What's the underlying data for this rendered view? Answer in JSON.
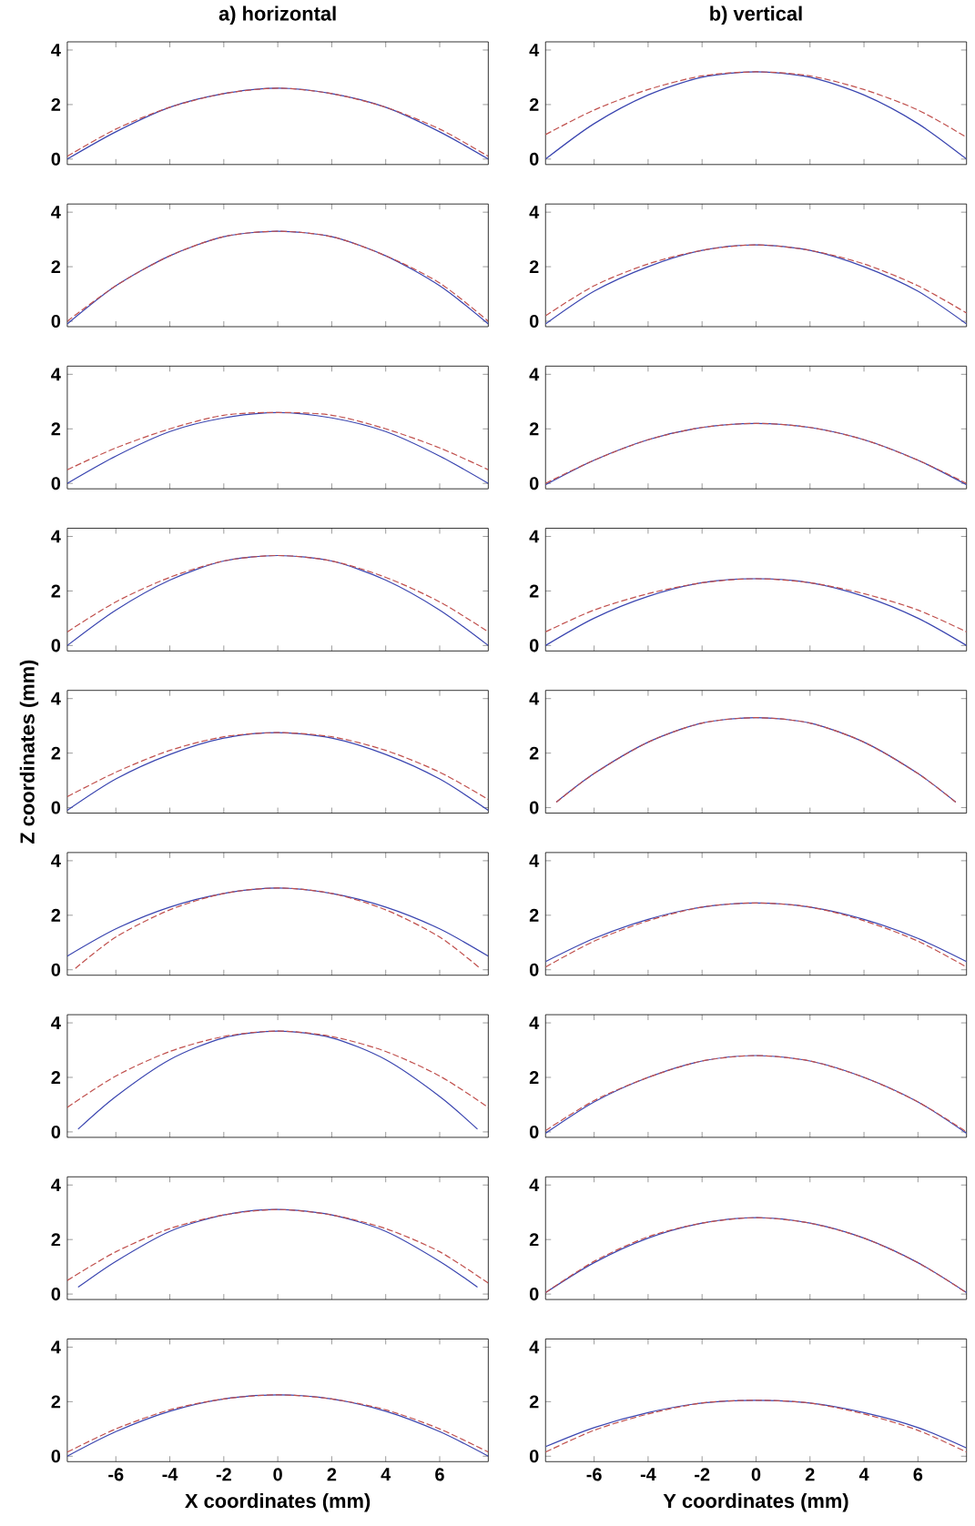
{
  "chart_data": [
    {
      "type": "line",
      "title": "a) horizontal",
      "xlim": [
        -7.8,
        7.8
      ],
      "ylim": [
        -0.2,
        4.3
      ],
      "xticks": [
        -6,
        -4,
        -2,
        0,
        2,
        4,
        6
      ],
      "yticks": [
        0,
        2,
        4
      ],
      "tick_labels": "y",
      "x": [
        -7.8,
        -6,
        -4,
        -2,
        0,
        2,
        4,
        6,
        7.8
      ],
      "series": [
        {
          "color": "#3a45b0",
          "line_style": "solid",
          "values": [
            0,
            1.0,
            1.9,
            2.4,
            2.6,
            2.4,
            1.9,
            1.0,
            0
          ]
        },
        {
          "color": "#c0504d",
          "line_style": "dashed",
          "values": [
            0.1,
            1.1,
            1.9,
            2.4,
            2.6,
            2.4,
            1.9,
            1.1,
            0.1
          ]
        }
      ]
    },
    {
      "type": "line",
      "title": "b) vertical",
      "xlim": [
        -7.8,
        7.8
      ],
      "ylim": [
        -0.2,
        4.3
      ],
      "xticks": [
        -6,
        -4,
        -2,
        0,
        2,
        4,
        6
      ],
      "yticks": [
        0,
        2,
        4
      ],
      "tick_labels": "y",
      "x": [
        -7.8,
        -6,
        -4,
        -2,
        0,
        2,
        4,
        6,
        7.8
      ],
      "series": [
        {
          "color": "#3a45b0",
          "line_style": "solid",
          "values": [
            0,
            1.3,
            2.35,
            3.0,
            3.2,
            3.0,
            2.35,
            1.3,
            0
          ]
        },
        {
          "color": "#c0504d",
          "line_style": "dashed",
          "values": [
            0.9,
            1.8,
            2.55,
            3.05,
            3.2,
            3.05,
            2.55,
            1.8,
            0.8
          ]
        }
      ]
    },
    {
      "type": "line",
      "xlim": [
        -7.8,
        7.8
      ],
      "ylim": [
        -0.2,
        4.3
      ],
      "xticks": [
        -6,
        -4,
        -2,
        0,
        2,
        4,
        6
      ],
      "yticks": [
        0,
        2,
        4
      ],
      "tick_labels": "y",
      "x": [
        -7.8,
        -6,
        -4,
        -2,
        0,
        2,
        4,
        6,
        7.8
      ],
      "series": [
        {
          "color": "#3a45b0",
          "line_style": "solid",
          "values": [
            -0.1,
            1.3,
            2.4,
            3.1,
            3.3,
            3.1,
            2.4,
            1.3,
            -0.1
          ]
        },
        {
          "color": "#c0504d",
          "line_style": "dashed",
          "values": [
            0,
            1.3,
            2.4,
            3.1,
            3.3,
            3.1,
            2.4,
            1.4,
            0
          ]
        }
      ]
    },
    {
      "type": "line",
      "xlim": [
        -7.8,
        7.8
      ],
      "ylim": [
        -0.2,
        4.3
      ],
      "xticks": [
        -6,
        -4,
        -2,
        0,
        2,
        4,
        6
      ],
      "yticks": [
        0,
        2,
        4
      ],
      "tick_labels": "y",
      "x": [
        -7.8,
        -6,
        -4,
        -2,
        0,
        2,
        4,
        6,
        7.8
      ],
      "series": [
        {
          "color": "#3a45b0",
          "line_style": "solid",
          "values": [
            -0.1,
            1.1,
            2.0,
            2.6,
            2.8,
            2.6,
            2.0,
            1.1,
            -0.1
          ]
        },
        {
          "color": "#c0504d",
          "line_style": "dashed",
          "values": [
            0.2,
            1.3,
            2.1,
            2.6,
            2.8,
            2.6,
            2.1,
            1.3,
            0.3
          ]
        }
      ]
    },
    {
      "type": "line",
      "xlim": [
        -7.8,
        7.8
      ],
      "ylim": [
        -0.2,
        4.3
      ],
      "xticks": [
        -6,
        -4,
        -2,
        0,
        2,
        4,
        6
      ],
      "yticks": [
        0,
        2,
        4
      ],
      "tick_labels": "y",
      "x": [
        -7.8,
        -6,
        -4,
        -2,
        0,
        2,
        4,
        6,
        7.8
      ],
      "series": [
        {
          "color": "#3a45b0",
          "line_style": "solid",
          "values": [
            0,
            1.0,
            1.9,
            2.4,
            2.6,
            2.4,
            1.9,
            1.0,
            0
          ]
        },
        {
          "color": "#c0504d",
          "line_style": "dashed",
          "values": [
            0.5,
            1.3,
            2.0,
            2.5,
            2.6,
            2.5,
            2.0,
            1.3,
            0.5
          ]
        }
      ]
    },
    {
      "type": "line",
      "xlim": [
        -7.8,
        7.8
      ],
      "ylim": [
        -0.2,
        4.3
      ],
      "xticks": [
        -6,
        -4,
        -2,
        0,
        2,
        4,
        6
      ],
      "yticks": [
        0,
        2,
        4
      ],
      "tick_labels": "y",
      "x": [
        -7.8,
        -6,
        -4,
        -2,
        0,
        2,
        4,
        6,
        7.8
      ],
      "series": [
        {
          "color": "#3a45b0",
          "line_style": "solid",
          "values": [
            -0.05,
            0.85,
            1.6,
            2.05,
            2.2,
            2.05,
            1.6,
            0.85,
            -0.05
          ]
        },
        {
          "color": "#c0504d",
          "line_style": "dashed",
          "values": [
            0,
            0.85,
            1.6,
            2.05,
            2.2,
            2.05,
            1.6,
            0.85,
            0
          ]
        }
      ]
    },
    {
      "type": "line",
      "xlim": [
        -7.8,
        7.8
      ],
      "ylim": [
        -0.2,
        4.3
      ],
      "xticks": [
        -6,
        -4,
        -2,
        0,
        2,
        4,
        6
      ],
      "yticks": [
        0,
        2,
        4
      ],
      "tick_labels": "y",
      "x": [
        -7.8,
        -6,
        -4,
        -2,
        0,
        2,
        4,
        6,
        7.8
      ],
      "series": [
        {
          "color": "#3a45b0",
          "line_style": "solid",
          "values": [
            0,
            1.3,
            2.4,
            3.1,
            3.3,
            3.1,
            2.4,
            1.3,
            0
          ]
        },
        {
          "color": "#c0504d",
          "line_style": "dashed",
          "values": [
            0.5,
            1.6,
            2.5,
            3.1,
            3.3,
            3.1,
            2.5,
            1.6,
            0.5
          ]
        }
      ]
    },
    {
      "type": "line",
      "xlim": [
        -7.8,
        7.8
      ],
      "ylim": [
        -0.2,
        4.3
      ],
      "xticks": [
        -6,
        -4,
        -2,
        0,
        2,
        4,
        6
      ],
      "yticks": [
        0,
        2,
        4
      ],
      "tick_labels": "y",
      "x": [
        -7.8,
        -6,
        -4,
        -2,
        0,
        2,
        4,
        6,
        7.8
      ],
      "series": [
        {
          "color": "#3a45b0",
          "line_style": "solid",
          "values": [
            0,
            1.0,
            1.8,
            2.3,
            2.45,
            2.3,
            1.8,
            1.0,
            0
          ]
        },
        {
          "color": "#c0504d",
          "line_style": "dashed",
          "values": [
            0.5,
            1.3,
            1.9,
            2.3,
            2.45,
            2.3,
            1.9,
            1.3,
            0.5
          ]
        }
      ]
    },
    {
      "type": "line",
      "ylabel": "Z coordinates (mm)",
      "xlim": [
        -7.8,
        7.8
      ],
      "ylim": [
        -0.2,
        4.3
      ],
      "xticks": [
        -6,
        -4,
        -2,
        0,
        2,
        4,
        6
      ],
      "yticks": [
        0,
        2,
        4
      ],
      "tick_labels": "y",
      "x": [
        -7.8,
        -6,
        -4,
        -2,
        0,
        2,
        4,
        6,
        7.8
      ],
      "series": [
        {
          "color": "#3a45b0",
          "line_style": "solid",
          "values": [
            -0.1,
            1.05,
            1.95,
            2.55,
            2.75,
            2.55,
            1.95,
            1.05,
            -0.1
          ]
        },
        {
          "color": "#c0504d",
          "line_style": "dashed",
          "values": [
            0.4,
            1.3,
            2.1,
            2.6,
            2.75,
            2.6,
            2.1,
            1.3,
            0.3
          ]
        }
      ]
    },
    {
      "type": "line",
      "xlim": [
        -7.8,
        7.8
      ],
      "ylim": [
        -0.2,
        4.3
      ],
      "xticks": [
        -6,
        -4,
        -2,
        0,
        2,
        4,
        6
      ],
      "yticks": [
        0,
        2,
        4
      ],
      "tick_labels": "y",
      "x": [
        -7.4,
        -6,
        -4,
        -2,
        0,
        2,
        4,
        6,
        7.4
      ],
      "series": [
        {
          "color": "#3a45b0",
          "line_style": "solid",
          "values": [
            0.2,
            1.25,
            2.4,
            3.1,
            3.3,
            3.1,
            2.4,
            1.25,
            0.2
          ]
        },
        {
          "color": "#c0504d",
          "line_style": "dashed",
          "values": [
            0.2,
            1.25,
            2.4,
            3.1,
            3.3,
            3.1,
            2.4,
            1.25,
            0.2
          ]
        }
      ]
    },
    {
      "type": "line",
      "xlim": [
        -7.8,
        7.8
      ],
      "ylim": [
        -0.2,
        4.3
      ],
      "xticks": [
        -6,
        -4,
        -2,
        0,
        2,
        4,
        6
      ],
      "yticks": [
        0,
        2,
        4
      ],
      "tick_labels": "y",
      "x": [
        -7.8,
        -6,
        -4,
        -2,
        0,
        2,
        4,
        6,
        7.8
      ],
      "series": [
        {
          "color": "#3a45b0",
          "line_style": "solid",
          "values": [
            0.5,
            1.5,
            2.3,
            2.8,
            3.0,
            2.8,
            2.3,
            1.5,
            0.5
          ]
        },
        {
          "color": "#c0504d",
          "line_style": "dashed",
          "x": [
            -7.5,
            -6,
            -4,
            -2,
            0,
            2,
            4,
            6,
            7.5
          ],
          "values": [
            0.05,
            1.2,
            2.2,
            2.8,
            3.0,
            2.8,
            2.2,
            1.2,
            0.05
          ]
        }
      ]
    },
    {
      "type": "line",
      "xlim": [
        -7.8,
        7.8
      ],
      "ylim": [
        -0.2,
        4.3
      ],
      "xticks": [
        -6,
        -4,
        -2,
        0,
        2,
        4,
        6
      ],
      "yticks": [
        0,
        2,
        4
      ],
      "tick_labels": "y",
      "x": [
        -7.8,
        -6,
        -4,
        -2,
        0,
        2,
        4,
        6,
        7.8
      ],
      "series": [
        {
          "color": "#3a45b0",
          "line_style": "solid",
          "values": [
            0.3,
            1.15,
            1.85,
            2.3,
            2.45,
            2.3,
            1.85,
            1.15,
            0.3
          ]
        },
        {
          "color": "#c0504d",
          "line_style": "dashed",
          "values": [
            0.1,
            1.05,
            1.8,
            2.3,
            2.45,
            2.3,
            1.8,
            1.05,
            0.1
          ]
        }
      ]
    },
    {
      "type": "line",
      "xlim": [
        -7.8,
        7.8
      ],
      "ylim": [
        -0.2,
        4.3
      ],
      "xticks": [
        -6,
        -4,
        -2,
        0,
        2,
        4,
        6
      ],
      "yticks": [
        0,
        2,
        4
      ],
      "tick_labels": "y",
      "x": [
        -7.4,
        -6,
        -4,
        -2,
        0,
        2,
        4,
        6,
        7.4
      ],
      "series": [
        {
          "color": "#3a45b0",
          "line_style": "solid",
          "values": [
            0.1,
            1.3,
            2.65,
            3.45,
            3.7,
            3.45,
            2.65,
            1.3,
            0.1
          ]
        },
        {
          "color": "#c0504d",
          "line_style": "dashed",
          "x": [
            -7.8,
            -6,
            -4,
            -2,
            0,
            2,
            4,
            6,
            7.8
          ],
          "values": [
            0.9,
            2.05,
            2.95,
            3.5,
            3.7,
            3.5,
            2.95,
            2.05,
            0.9
          ]
        }
      ]
    },
    {
      "type": "line",
      "xlim": [
        -7.8,
        7.8
      ],
      "ylim": [
        -0.2,
        4.3
      ],
      "xticks": [
        -6,
        -4,
        -2,
        0,
        2,
        4,
        6
      ],
      "yticks": [
        0,
        2,
        4
      ],
      "tick_labels": "y",
      "x": [
        -7.8,
        -6,
        -4,
        -2,
        0,
        2,
        4,
        6,
        7.8
      ],
      "series": [
        {
          "color": "#3a45b0",
          "line_style": "solid",
          "values": [
            -0.05,
            1.1,
            2.0,
            2.6,
            2.8,
            2.6,
            2.0,
            1.1,
            -0.05
          ]
        },
        {
          "color": "#c0504d",
          "line_style": "dashed",
          "values": [
            0.05,
            1.15,
            2.0,
            2.6,
            2.8,
            2.6,
            2.0,
            1.1,
            0
          ]
        }
      ]
    },
    {
      "type": "line",
      "xlim": [
        -7.8,
        7.8
      ],
      "ylim": [
        -0.2,
        4.3
      ],
      "xticks": [
        -6,
        -4,
        -2,
        0,
        2,
        4,
        6
      ],
      "yticks": [
        0,
        2,
        4
      ],
      "tick_labels": "y",
      "x": [
        -7.4,
        -6,
        -4,
        -2,
        0,
        2,
        4,
        6,
        7.4
      ],
      "series": [
        {
          "color": "#3a45b0",
          "line_style": "solid",
          "values": [
            0.25,
            1.2,
            2.3,
            2.9,
            3.1,
            2.9,
            2.3,
            1.2,
            0.25
          ]
        },
        {
          "color": "#c0504d",
          "line_style": "dashed",
          "x": [
            -7.8,
            -6,
            -4,
            -2,
            0,
            2,
            4,
            6,
            7.8
          ],
          "values": [
            0.5,
            1.55,
            2.4,
            2.9,
            3.1,
            2.9,
            2.4,
            1.55,
            0.4
          ]
        }
      ]
    },
    {
      "type": "line",
      "xlim": [
        -7.8,
        7.8
      ],
      "ylim": [
        -0.2,
        4.3
      ],
      "xticks": [
        -6,
        -4,
        -2,
        0,
        2,
        4,
        6
      ],
      "yticks": [
        0,
        2,
        4
      ],
      "tick_labels": "y",
      "x": [
        -7.8,
        -6,
        -4,
        -2,
        0,
        2,
        4,
        6,
        7.8
      ],
      "series": [
        {
          "color": "#3a45b0",
          "line_style": "solid",
          "values": [
            0.05,
            1.15,
            2.05,
            2.6,
            2.8,
            2.6,
            2.05,
            1.15,
            0.05
          ]
        },
        {
          "color": "#c0504d",
          "line_style": "dashed",
          "values": [
            0.05,
            1.2,
            2.1,
            2.6,
            2.8,
            2.6,
            2.05,
            1.15,
            0.05
          ]
        }
      ]
    },
    {
      "type": "line",
      "xlabel": "X coordinates (mm)",
      "xlim": [
        -7.8,
        7.8
      ],
      "ylim": [
        -0.2,
        4.3
      ],
      "xticks": [
        -6,
        -4,
        -2,
        0,
        2,
        4,
        6
      ],
      "yticks": [
        0,
        2,
        4
      ],
      "x": [
        -7.8,
        -6,
        -4,
        -2,
        0,
        2,
        4,
        6,
        7.8
      ],
      "series": [
        {
          "color": "#3a45b0",
          "line_style": "solid",
          "values": [
            0,
            0.9,
            1.65,
            2.1,
            2.25,
            2.1,
            1.65,
            0.9,
            0
          ]
        },
        {
          "color": "#c0504d",
          "line_style": "dashed",
          "values": [
            0.15,
            1.0,
            1.7,
            2.1,
            2.25,
            2.1,
            1.7,
            1.0,
            0.15
          ]
        }
      ]
    },
    {
      "type": "line",
      "xlabel": "Y coordinates (mm)",
      "xlim": [
        -7.8,
        7.8
      ],
      "ylim": [
        -0.2,
        4.3
      ],
      "xticks": [
        -6,
        -4,
        -2,
        0,
        2,
        4,
        6
      ],
      "yticks": [
        0,
        2,
        4
      ],
      "x": [
        -7.8,
        -6,
        -4,
        -2,
        0,
        2,
        4,
        6,
        7.8
      ],
      "series": [
        {
          "color": "#3a45b0",
          "line_style": "solid",
          "values": [
            0.35,
            1.05,
            1.6,
            1.95,
            2.05,
            1.95,
            1.6,
            1.05,
            0.3
          ]
        },
        {
          "color": "#c0504d",
          "line_style": "dashed",
          "values": [
            0.15,
            0.95,
            1.55,
            1.95,
            2.05,
            1.95,
            1.55,
            0.95,
            0.15
          ]
        }
      ]
    }
  ]
}
